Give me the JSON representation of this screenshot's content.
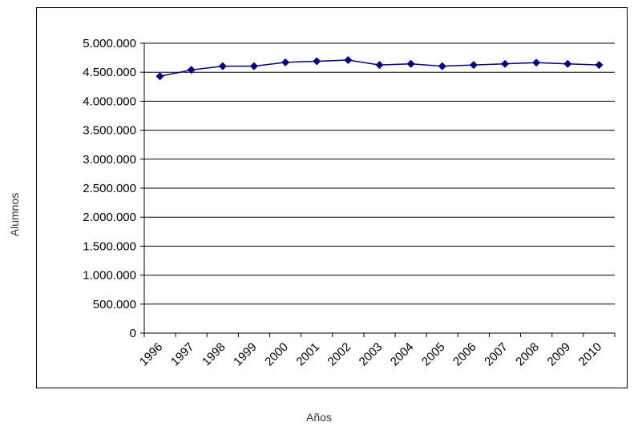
{
  "chart_data": {
    "type": "line",
    "title": "",
    "xlabel": "Años",
    "ylabel": "Alumnos",
    "categories": [
      "1996",
      "1997",
      "1998",
      "1999",
      "2000",
      "2001",
      "2002",
      "2003",
      "2004",
      "2005",
      "2006",
      "2007",
      "2008",
      "2009",
      "2010"
    ],
    "series": [
      {
        "values": [
          4430000,
          4540000,
          4605000,
          4605000,
          4670000,
          4690000,
          4710000,
          4625000,
          4645000,
          4605000,
          4625000,
          4645000,
          4665000,
          4645000,
          4625000
        ]
      }
    ],
    "ylim": [
      0,
      5000000
    ],
    "yticks": [
      "0",
      "500.000",
      "1.000.000",
      "1.500.000",
      "2.000.000",
      "2.500.000",
      "3.000.000",
      "3.500.000",
      "4.000.000",
      "4.500.000",
      "5.000.000"
    ],
    "grid": true,
    "legend": "none",
    "colors": {
      "line": "#000080",
      "marker": "#000080",
      "grid": "#000000"
    }
  }
}
